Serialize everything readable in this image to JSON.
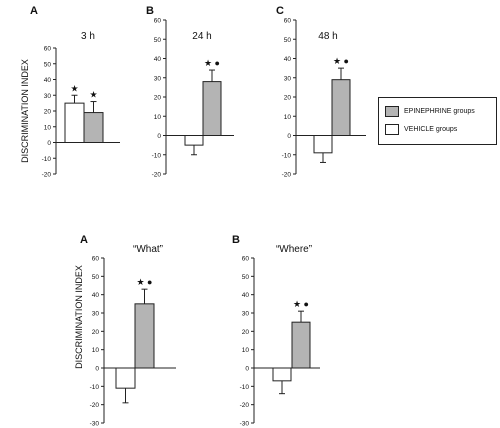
{
  "figure": {
    "legend": {
      "epinephrine_label": "EPINEPHRINE groups",
      "vehicle_label": "VEHICLE groups"
    }
  },
  "colors": {
    "epinephrine": "#b4b4b4",
    "vehicle": "#ffffff",
    "ink": "#222222",
    "marker": "#111111"
  },
  "chart_data": [
    {
      "type": "bar",
      "panel_letter": "A",
      "title": "3 h",
      "ylabel": "DISCRIMINATION INDEX",
      "ylim": [
        -20,
        60
      ],
      "yticks": [
        -20,
        -10,
        0,
        10,
        20,
        30,
        40,
        50,
        60
      ],
      "series": [
        {
          "name": "VEHICLE groups",
          "value": 25,
          "error": 5,
          "markers": "★"
        },
        {
          "name": "EPINEPHRINE groups",
          "value": 19,
          "error": 7,
          "markers": "★"
        }
      ]
    },
    {
      "type": "bar",
      "panel_letter": "B",
      "title": "24 h",
      "ylabel": "",
      "ylim": [
        -20,
        60
      ],
      "yticks": [
        -20,
        -10,
        0,
        10,
        20,
        30,
        40,
        50,
        60
      ],
      "series": [
        {
          "name": "VEHICLE groups",
          "value": -5,
          "error": 5,
          "markers": ""
        },
        {
          "name": "EPINEPHRINE groups",
          "value": 28,
          "error": 6,
          "markers": "★ ●"
        }
      ]
    },
    {
      "type": "bar",
      "panel_letter": "C",
      "title": "48 h",
      "ylabel": "",
      "ylim": [
        -20,
        60
      ],
      "yticks": [
        -20,
        -10,
        0,
        10,
        20,
        30,
        40,
        50,
        60
      ],
      "series": [
        {
          "name": "VEHICLE groups",
          "value": -9,
          "error": 5,
          "markers": ""
        },
        {
          "name": "EPINEPHRINE groups",
          "value": 29,
          "error": 6,
          "markers": "★ ●"
        }
      ]
    },
    {
      "type": "bar",
      "panel_letter": "A",
      "title": "“What”",
      "ylabel": "DISCRIMINATION INDEX",
      "ylim": [
        -30,
        60
      ],
      "yticks": [
        -30,
        -20,
        -10,
        0,
        10,
        20,
        30,
        40,
        50,
        60
      ],
      "series": [
        {
          "name": "VEHICLE groups",
          "value": -11,
          "error": 8,
          "markers": ""
        },
        {
          "name": "EPINEPHRINE groups",
          "value": 35,
          "error": 8,
          "markers": "★ ●"
        }
      ]
    },
    {
      "type": "bar",
      "panel_letter": "B",
      "title": "“Where”",
      "ylabel": "",
      "ylim": [
        -30,
        60
      ],
      "yticks": [
        -30,
        -20,
        -10,
        0,
        10,
        20,
        30,
        40,
        50,
        60
      ],
      "series": [
        {
          "name": "VEHICLE groups",
          "value": -7,
          "error": 7,
          "markers": ""
        },
        {
          "name": "EPINEPHRINE groups",
          "value": 25,
          "error": 6,
          "markers": "★ ●"
        }
      ]
    }
  ]
}
